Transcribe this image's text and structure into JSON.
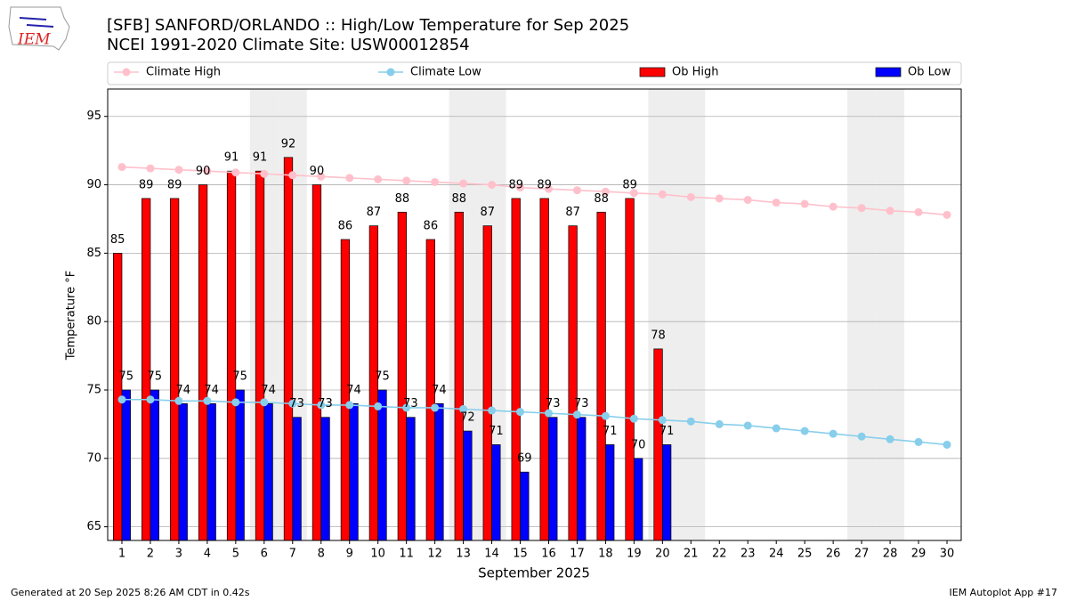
{
  "logo_text": "IEM",
  "chart_data": {
    "type": "bar",
    "title": "[SFB] SANFORD/ORLANDO :: High/Low Temperature for Sep 2025",
    "subtitle": "NCEI 1991-2020 Climate Site: USW00012854",
    "x_label": "September 2025",
    "y_label": "Temperature °F",
    "x": [
      1,
      2,
      3,
      4,
      5,
      6,
      7,
      8,
      9,
      10,
      11,
      12,
      13,
      14,
      15,
      16,
      17,
      18,
      19,
      20,
      21,
      22,
      23,
      24,
      25,
      26,
      27,
      28,
      29,
      30
    ],
    "xlim": [
      0.5,
      30.5
    ],
    "xticks": [
      1,
      2,
      3,
      4,
      5,
      6,
      7,
      8,
      9,
      10,
      11,
      12,
      13,
      14,
      15,
      16,
      17,
      18,
      19,
      20,
      21,
      22,
      23,
      24,
      25,
      26,
      27,
      28,
      29,
      30
    ],
    "ylim": [
      64,
      97
    ],
    "yticks": [
      65,
      70,
      75,
      80,
      85,
      90,
      95
    ],
    "grid": true,
    "legend": "top",
    "shaded_days": [
      6,
      7,
      13,
      14,
      20,
      21,
      27,
      28
    ],
    "series": [
      {
        "name": "Climate High",
        "type": "line",
        "color": "#ffc0cb",
        "values": [
          91.3,
          91.2,
          91.1,
          91.0,
          90.9,
          90.8,
          90.7,
          90.6,
          90.5,
          90.4,
          90.3,
          90.2,
          90.1,
          90.0,
          89.8,
          89.7,
          89.6,
          89.5,
          89.4,
          89.3,
          89.1,
          89.0,
          88.9,
          88.7,
          88.6,
          88.4,
          88.3,
          88.1,
          88.0,
          87.8
        ]
      },
      {
        "name": "Climate Low",
        "type": "line",
        "color": "#87ceeb",
        "values": [
          74.3,
          74.3,
          74.2,
          74.2,
          74.1,
          74.1,
          74.0,
          73.9,
          73.9,
          73.8,
          73.7,
          73.7,
          73.6,
          73.5,
          73.4,
          73.3,
          73.2,
          73.1,
          72.9,
          72.8,
          72.7,
          72.5,
          72.4,
          72.2,
          72.0,
          71.8,
          71.6,
          71.4,
          71.2,
          71.0
        ]
      },
      {
        "name": "Ob High",
        "type": "bar",
        "color": "#ff0000",
        "values": [
          85,
          89,
          89,
          90,
          91,
          91,
          92,
          90,
          86,
          87,
          88,
          86,
          88,
          87,
          89,
          89,
          87,
          88,
          89,
          78,
          null,
          null,
          null,
          null,
          null,
          null,
          null,
          null,
          null,
          null
        ]
      },
      {
        "name": "Ob Low",
        "type": "bar",
        "color": "#0000ff",
        "values": [
          75,
          75,
          74,
          74,
          75,
          74,
          73,
          73,
          74,
          75,
          73,
          74,
          72,
          71,
          69,
          73,
          73,
          71,
          70,
          71,
          null,
          null,
          null,
          null,
          null,
          null,
          null,
          null,
          null,
          null
        ]
      }
    ],
    "footer_left": "Generated at 20 Sep 2025 8:26 AM CDT in 0.42s",
    "footer_right": "IEM Autoplot App #17"
  }
}
